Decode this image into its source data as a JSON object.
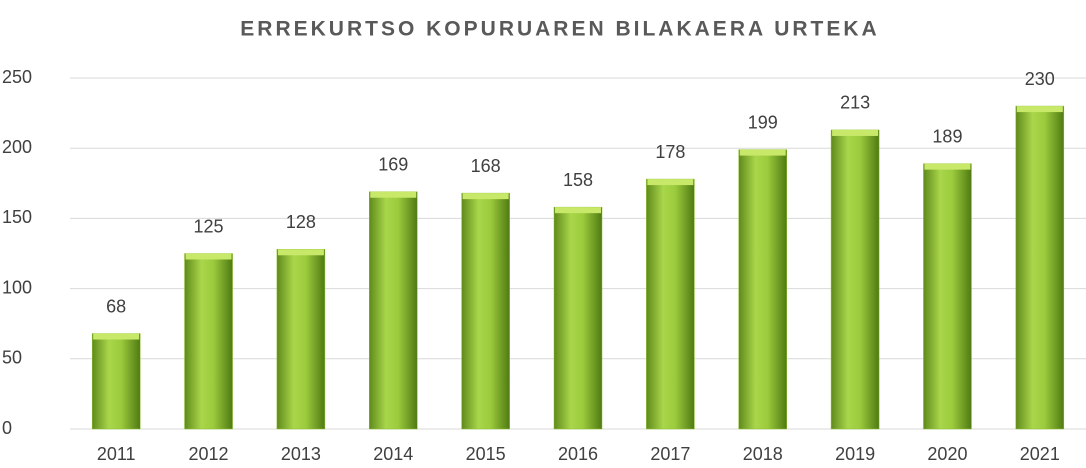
{
  "chart_data": {
    "type": "bar",
    "title": "ERREKURTSO KOPURUAREN BILAKAERA URTEKA",
    "categories": [
      "2011",
      "2012",
      "2013",
      "2014",
      "2015",
      "2016",
      "2017",
      "2018",
      "2019",
      "2020",
      "2021"
    ],
    "values": [
      68,
      125,
      128,
      169,
      168,
      158,
      178,
      199,
      213,
      189,
      230
    ],
    "color": "#8cbf2e",
    "ylim": [
      0,
      250
    ],
    "yticks": [
      0,
      50,
      100,
      150,
      200,
      250
    ],
    "grid": true
  }
}
